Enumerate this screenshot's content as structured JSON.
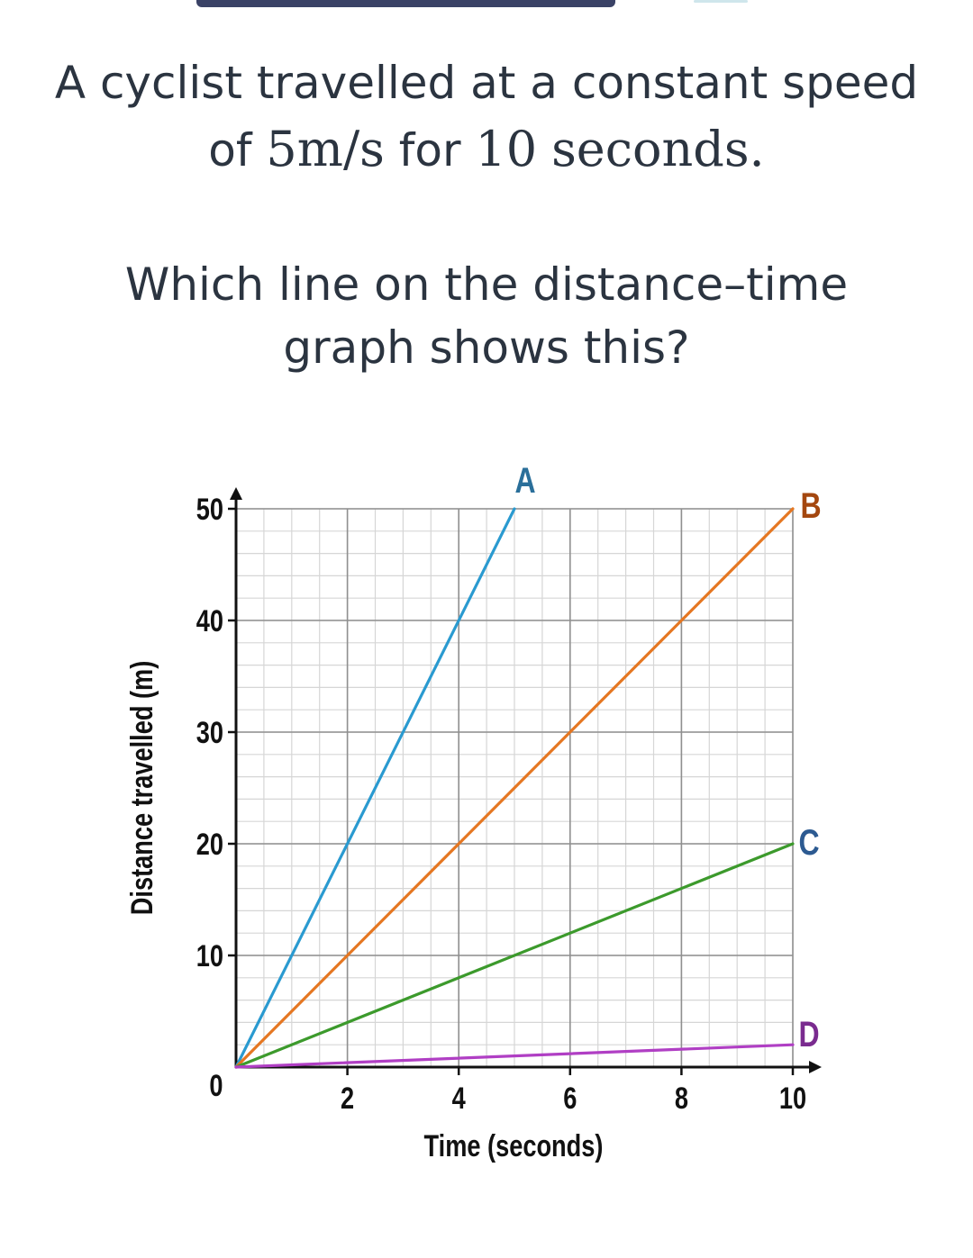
{
  "question": {
    "line1": "A cyclist travelled at a constant speed",
    "line2_prefix": "of",
    "speed_value": "5",
    "speed_unit": "m/s",
    "line2_mid": "for",
    "time_value": "10",
    "time_unit": "seconds.",
    "line3": "Which line on the distance–time",
    "line4": "graph shows this?"
  },
  "chart_data": {
    "type": "line",
    "xlabel": "Time (seconds)",
    "ylabel": "Distance travelled (m)",
    "xlim": [
      0,
      10
    ],
    "ylim": [
      0,
      50
    ],
    "x_ticks": [
      "0",
      "2",
      "4",
      "6",
      "8",
      "10"
    ],
    "y_ticks": [
      "10",
      "20",
      "30",
      "40",
      "50"
    ],
    "grid": true,
    "series": [
      {
        "name": "A",
        "color": "#2a9ad0",
        "points": [
          [
            0,
            0
          ],
          [
            5,
            50
          ]
        ]
      },
      {
        "name": "B",
        "color": "#e57722",
        "points": [
          [
            0,
            0
          ],
          [
            10,
            50
          ]
        ]
      },
      {
        "name": "C",
        "color": "#3c9a2c",
        "points": [
          [
            0,
            0
          ],
          [
            10,
            20
          ]
        ]
      },
      {
        "name": "D",
        "color": "#b03fc4",
        "points": [
          [
            0,
            0
          ],
          [
            10,
            2
          ]
        ]
      }
    ],
    "label_colors": {
      "A": "#2a6f9a",
      "B": "#a4470f",
      "C": "#2c5a91",
      "D": "#7a2b8f"
    }
  }
}
